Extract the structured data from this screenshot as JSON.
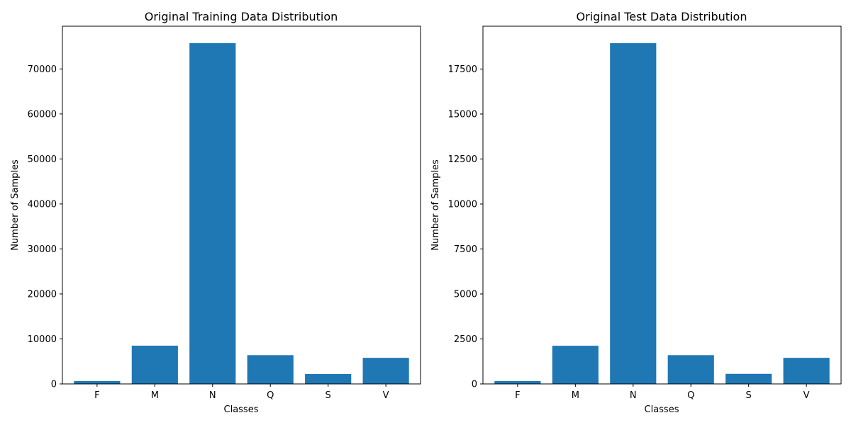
{
  "chart_data": [
    {
      "type": "bar",
      "title": "Original Training Data Distribution",
      "xlabel": "Classes",
      "ylabel": "Number of Samples",
      "categories": [
        "F",
        "M",
        "N",
        "Q",
        "S",
        "V"
      ],
      "values": [
        640,
        8500,
        75750,
        6400,
        2200,
        5800
      ],
      "ylim": [
        0,
        79500
      ],
      "yticks": [
        0,
        10000,
        20000,
        30000,
        40000,
        50000,
        60000,
        70000
      ],
      "bar_color": "#1f77b4",
      "grid": false
    },
    {
      "type": "bar",
      "title": "Original Test Data Distribution",
      "xlabel": "Classes",
      "ylabel": "Number of Samples",
      "categories": [
        "F",
        "M",
        "N",
        "Q",
        "S",
        "V"
      ],
      "values": [
        160,
        2120,
        18940,
        1600,
        560,
        1450
      ],
      "ylim": [
        0,
        19880
      ],
      "yticks": [
        0,
        2500,
        5000,
        7500,
        10000,
        12500,
        15000,
        17500
      ],
      "bar_color": "#1f77b4",
      "grid": false
    }
  ]
}
